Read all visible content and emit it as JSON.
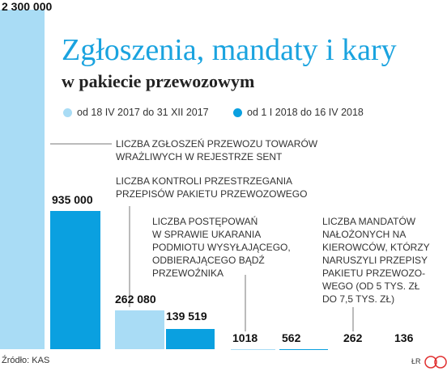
{
  "chart_data": {
    "type": "bar",
    "title": "Zgłoszenia, mandaty i kary",
    "subtitle": "w pakiecie przewozowym",
    "categories": [
      "LICZBA ZGŁOSZEŃ PRZEWOZU TOWARÓW\nWRAŻLIWYCH W REJESTRZE SENT",
      "LICZBA KONTROLI PRZESTRZEGANIA\nPRZEPISÓW PAKIETU PRZEWOZOWEGO",
      "LICZBA POSTĘPOWAŃ\nW SPRAWIE UKARANIA\nPODMIOTU WYSYŁAJĄCEGO,\nODBIERAJĄCEGO BĄDŹ\nPRZEWOŹNIKA",
      "LICZBA MANDATÓW\nNAŁOŻONYCH NA\nKIEROWCÓW, KTÓRZY\nNARUSZYLI PRZEPISY\nPAKIETU PRZEWOZO-\nWEGO (OD 5 TYS. ZŁ\nDO 7,5 TYS. ZŁ)"
    ],
    "series": [
      {
        "name": "od 18 IV 2017 do 31 XII 2017",
        "color": "#a9dcf5",
        "values": [
          2300000,
          262080,
          1018,
          262
        ],
        "value_labels": [
          "2 300 000",
          "262 080",
          "1018",
          "262"
        ]
      },
      {
        "name": "od 1 I 2018 do 16 IV 2018",
        "color": "#0aa0e0",
        "values": [
          935000,
          139519,
          562,
          136
        ],
        "value_labels": [
          "935 000",
          "139 519",
          "562",
          "136"
        ]
      }
    ],
    "ylim": [
      0,
      2300000
    ],
    "source": "Źródło: KAS",
    "author": "ŁR"
  }
}
